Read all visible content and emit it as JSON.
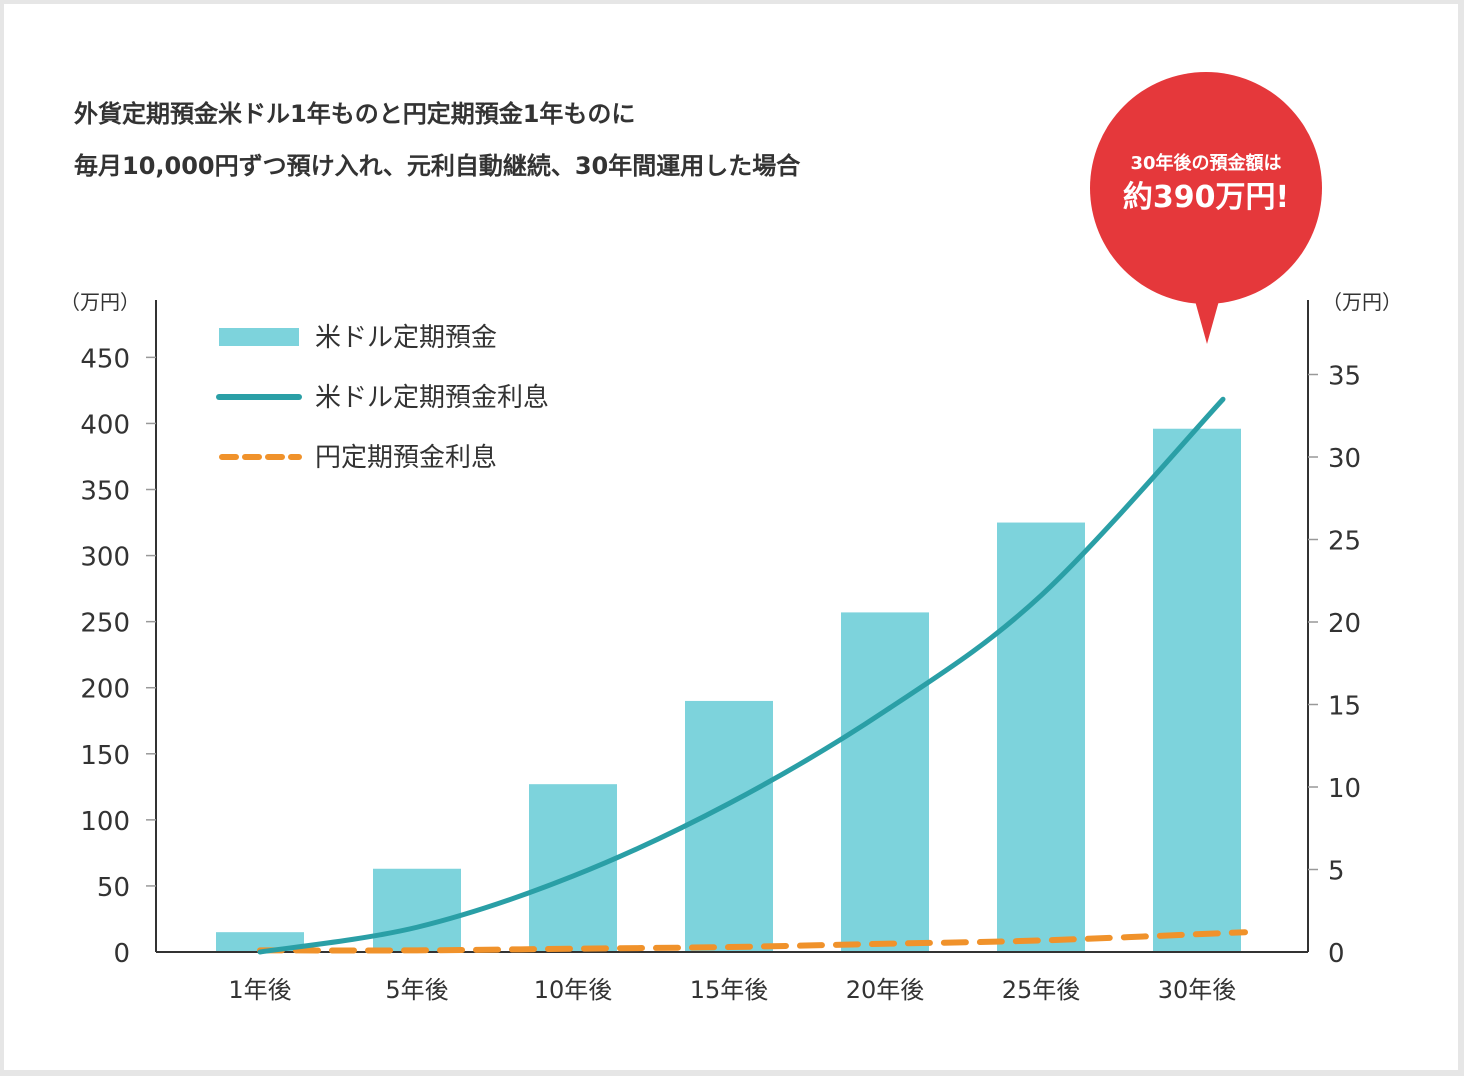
{
  "title": {
    "line1": "外貨定期預金米ドル1年ものと円定期預金1年ものに",
    "line2": "毎月10,000円ずつ預け入れ、元利自動継続、30年間運用した場合"
  },
  "callout": {
    "line1": "30年後の預金額は",
    "line2": "約390万円!",
    "color": "#e5383b"
  },
  "chart_data": {
    "type": "bar",
    "categories": [
      "1年後",
      "5年後",
      "10年後",
      "15年後",
      "20年後",
      "25年後",
      "30年後"
    ],
    "y_left": {
      "unit": "（万円）",
      "ylim": [
        0,
        450
      ],
      "ticks": [
        "0",
        "50",
        "100",
        "150",
        "200",
        "250",
        "300",
        "350",
        "400",
        "450"
      ]
    },
    "y_right": {
      "unit": "（万円）",
      "ylim": [
        0,
        36
      ],
      "ticks": [
        "0",
        "5",
        "10",
        "15",
        "20",
        "25",
        "30",
        "35"
      ]
    },
    "series": [
      {
        "name": "米ドル定期預金",
        "type": "bar",
        "axis": "left",
        "color": "#7dd3dc",
        "values": [
          15,
          63,
          127,
          190,
          257,
          325,
          396
        ]
      },
      {
        "name": "米ドル定期預金利息",
        "type": "line",
        "axis": "right",
        "color": "#2a9fa6",
        "style": "solid",
        "values": [
          0,
          1.5,
          4.6,
          9.0,
          14.6,
          21.6,
          33.5
        ]
      },
      {
        "name": "円定期預金利息",
        "type": "line",
        "axis": "right",
        "color": "#f0922b",
        "style": "dashed",
        "values": [
          0.1,
          0.1,
          0.2,
          0.3,
          0.5,
          0.7,
          1.2
        ]
      }
    ],
    "legend_position": "top-left",
    "grid": false
  }
}
